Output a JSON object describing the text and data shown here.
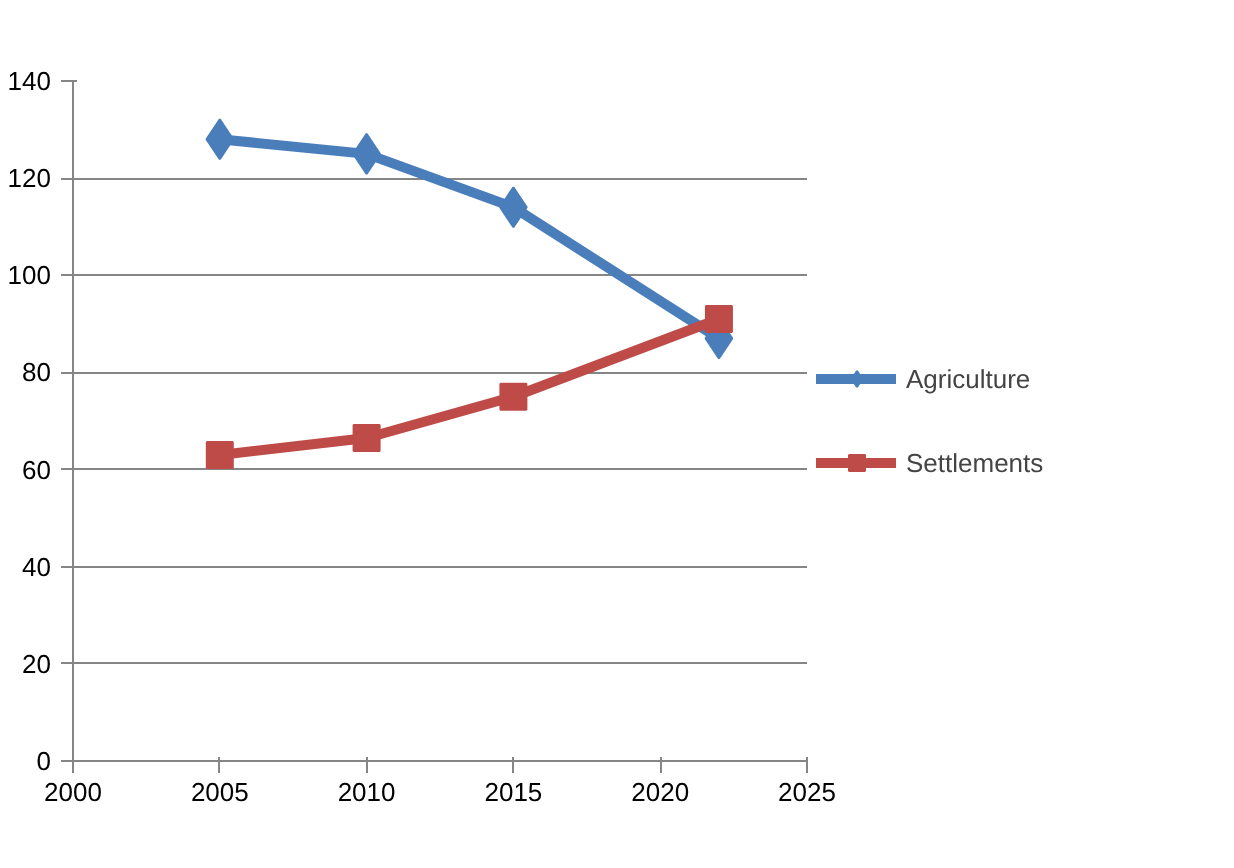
{
  "chart_data": {
    "type": "line",
    "x": [
      2005,
      2010,
      2015,
      2022
    ],
    "series": [
      {
        "name": "Agriculture",
        "color": "#4a7ebb",
        "marker": "diamond",
        "values": [
          128,
          125,
          114,
          87
        ]
      },
      {
        "name": "Settlements",
        "color": "#be4b48",
        "marker": "square",
        "values": [
          63,
          66.5,
          75,
          91
        ]
      }
    ],
    "xlim": [
      2000,
      2025
    ],
    "xticks": [
      2000,
      2005,
      2010,
      2015,
      2020,
      2025
    ],
    "ylim": [
      0,
      140
    ],
    "yticks": [
      0,
      20,
      40,
      60,
      80,
      100,
      120,
      140
    ],
    "grid": "y",
    "legend": "right",
    "line_style": "solid"
  }
}
